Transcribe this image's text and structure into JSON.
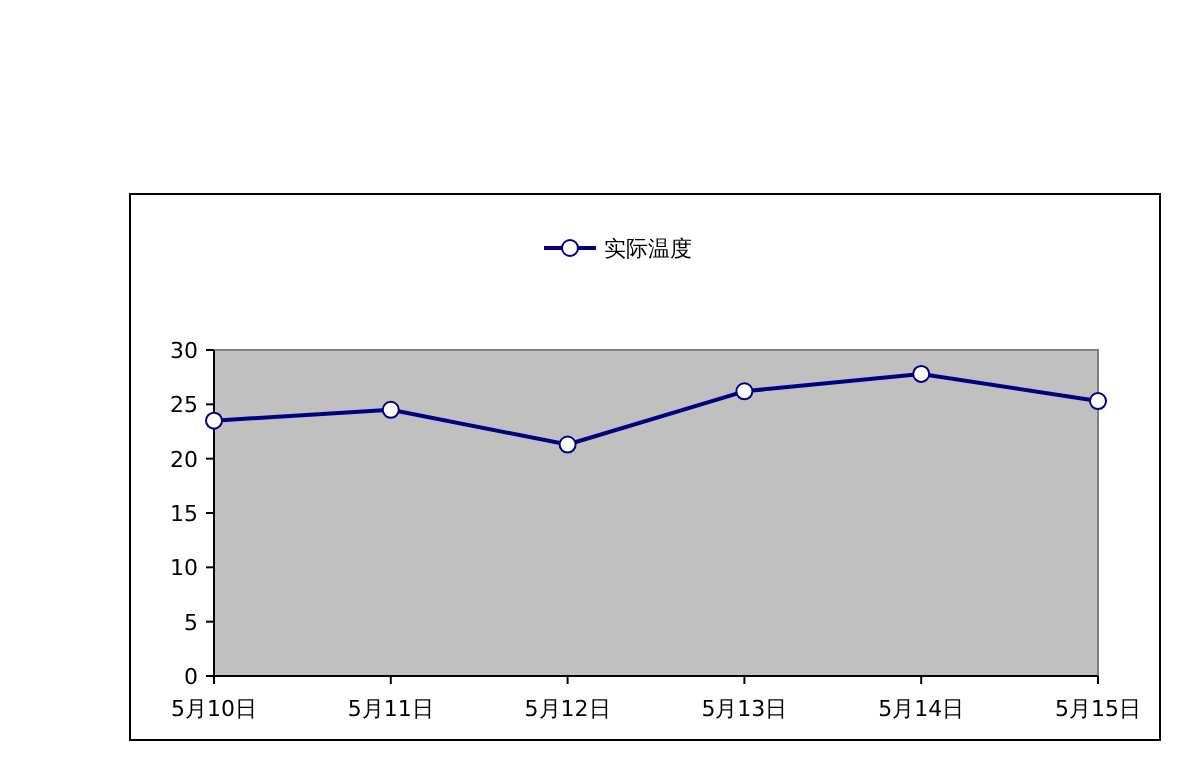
{
  "chart_data": {
    "type": "line",
    "categories": [
      "5月10日",
      "5月11日",
      "5月12日",
      "5月13日",
      "5月14日",
      "5月15日"
    ],
    "series": [
      {
        "name": "实际温度",
        "color": "#000080",
        "values": [
          23.5,
          24.5,
          21.3,
          26.2,
          27.8,
          25.3
        ]
      }
    ],
    "ylim": [
      0,
      30
    ],
    "yticks": [
      0,
      5,
      10,
      15,
      20,
      25,
      30
    ],
    "legend": "top",
    "marker": "circle",
    "line_style": "solid"
  }
}
